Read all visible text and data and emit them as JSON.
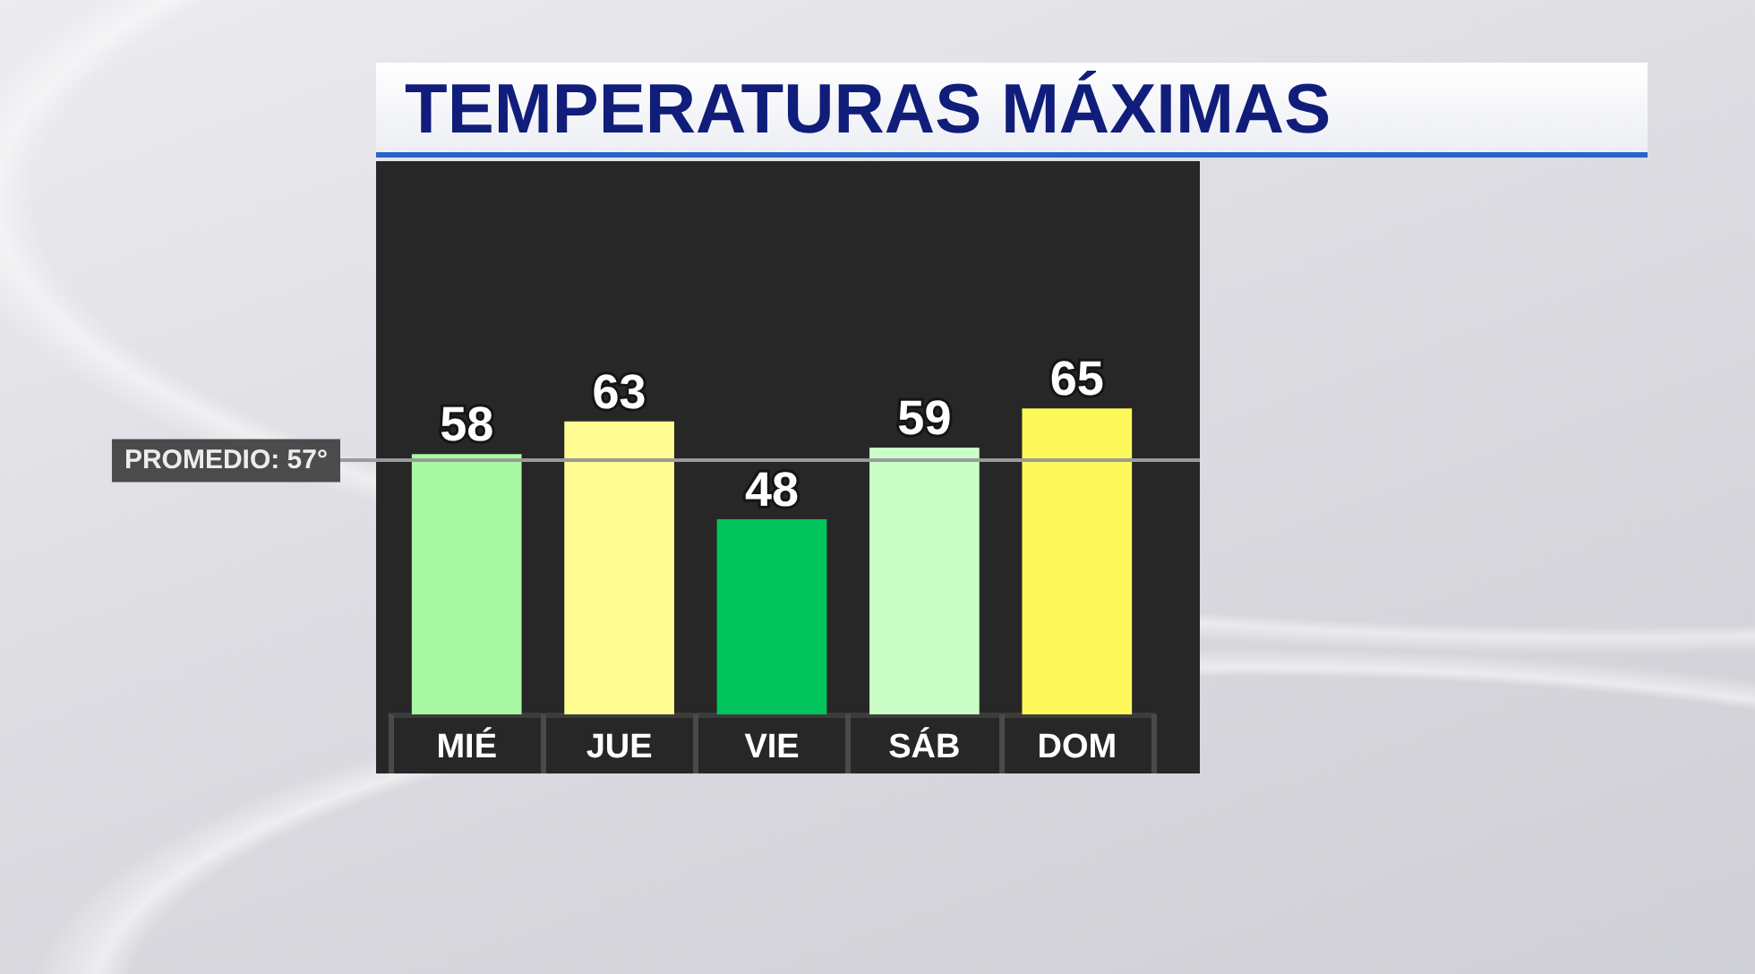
{
  "chart_data": {
    "type": "bar",
    "title": "TEMPERATURAS MÁXIMAS",
    "categories": [
      "MIÉ",
      "JUE",
      "VIE",
      "SÁB",
      "DOM"
    ],
    "values": [
      58,
      63,
      48,
      59,
      65
    ],
    "colors": [
      "#a9f8a4",
      "#fdfb91",
      "#00c55c",
      "#c9fec7",
      "#fdf95a"
    ],
    "data_labels": true,
    "ref_lines": [
      {
        "axis": "y",
        "value": 57,
        "label": "PROMEDIO: 57°",
        "color": "#9a9a9a"
      }
    ],
    "ylim": [
      18,
      103
    ],
    "tick_labels": "x"
  }
}
